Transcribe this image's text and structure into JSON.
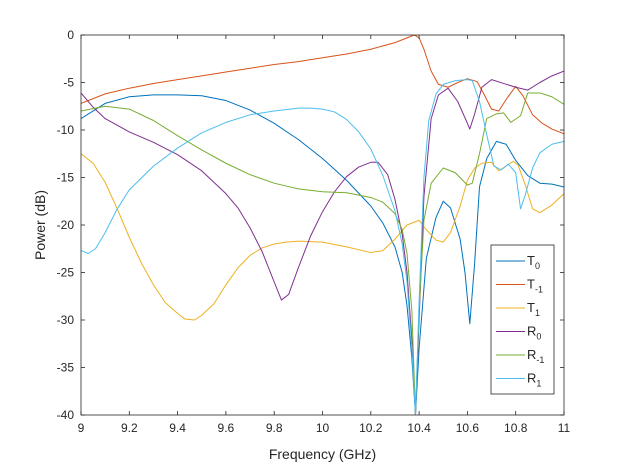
{
  "chart_data": {
    "type": "line",
    "xlabel": "Frequency (GHz)",
    "ylabel": "Power (dB)",
    "xlim": [
      9,
      11
    ],
    "ylim": [
      -40,
      0
    ],
    "xticks": [
      9,
      9.2,
      9.4,
      9.6,
      9.8,
      10,
      10.2,
      10.4,
      10.6,
      10.8,
      11
    ],
    "xtick_labels": [
      "9",
      "9.2",
      "9.4",
      "9.6",
      "9.8",
      "10",
      "10.2",
      "10.4",
      "10.6",
      "10.8",
      "11"
    ],
    "yticks": [
      0,
      -5,
      -10,
      -15,
      -20,
      -25,
      -30,
      -35,
      -40
    ],
    "ytick_labels": [
      "0",
      "-5",
      "-10",
      "-15",
      "-20",
      "-25",
      "-30",
      "-35",
      "-40"
    ],
    "grid": false,
    "legend_position": "bottom-right",
    "series": [
      {
        "name": "T",
        "sub": "0",
        "color": "#0072BD",
        "points": [
          [
            9,
            -8.8
          ],
          [
            9.1,
            -7.2
          ],
          [
            9.2,
            -6.5
          ],
          [
            9.3,
            -6.3
          ],
          [
            9.4,
            -6.3
          ],
          [
            9.5,
            -6.4
          ],
          [
            9.6,
            -6.9
          ],
          [
            9.7,
            -7.9
          ],
          [
            9.8,
            -9.3
          ],
          [
            9.9,
            -11
          ],
          [
            10,
            -13
          ],
          [
            10.1,
            -15.3
          ],
          [
            10.2,
            -18
          ],
          [
            10.25,
            -19.8
          ],
          [
            10.3,
            -22.3
          ],
          [
            10.33,
            -25
          ],
          [
            10.35,
            -28.5
          ],
          [
            10.37,
            -34
          ],
          [
            10.385,
            -40
          ],
          [
            10.4,
            -33
          ],
          [
            10.43,
            -23.5
          ],
          [
            10.47,
            -19.2
          ],
          [
            10.5,
            -17.5
          ],
          [
            10.53,
            -18.2
          ],
          [
            10.57,
            -21.5
          ],
          [
            10.59,
            -25
          ],
          [
            10.61,
            -30.4
          ],
          [
            10.63,
            -24
          ],
          [
            10.65,
            -16
          ],
          [
            10.68,
            -13
          ],
          [
            10.72,
            -11.2
          ],
          [
            10.76,
            -11.5
          ],
          [
            10.8,
            -13.2
          ],
          [
            10.85,
            -14.8
          ],
          [
            10.9,
            -15.6
          ],
          [
            10.95,
            -15.7
          ],
          [
            11,
            -16
          ]
        ]
      },
      {
        "name": "T",
        "sub": "-1",
        "color": "#D95319",
        "points": [
          [
            9,
            -7.2
          ],
          [
            9.1,
            -6.2
          ],
          [
            9.2,
            -5.6
          ],
          [
            9.3,
            -5.1
          ],
          [
            9.4,
            -4.7
          ],
          [
            9.5,
            -4.3
          ],
          [
            9.6,
            -3.9
          ],
          [
            9.7,
            -3.5
          ],
          [
            9.8,
            -3.1
          ],
          [
            9.9,
            -2.8
          ],
          [
            10,
            -2.4
          ],
          [
            10.1,
            -2
          ],
          [
            10.2,
            -1.5
          ],
          [
            10.3,
            -0.8
          ],
          [
            10.35,
            -0.3
          ],
          [
            10.38,
            0
          ],
          [
            10.4,
            -0.3
          ],
          [
            10.42,
            -1.5
          ],
          [
            10.45,
            -3.8
          ],
          [
            10.48,
            -5.2
          ],
          [
            10.52,
            -5.5
          ],
          [
            10.56,
            -5
          ],
          [
            10.6,
            -4.6
          ],
          [
            10.64,
            -4.9
          ],
          [
            10.67,
            -6.3
          ],
          [
            10.7,
            -7.8
          ],
          [
            10.73,
            -8
          ],
          [
            10.76,
            -6.8
          ],
          [
            10.8,
            -5.4
          ],
          [
            10.83,
            -6.4
          ],
          [
            10.87,
            -8.4
          ],
          [
            10.91,
            -9.3
          ],
          [
            10.95,
            -9.9
          ],
          [
            11,
            -10.4
          ]
        ]
      },
      {
        "name": "T",
        "sub": "1",
        "color": "#EDB120",
        "points": [
          [
            9,
            -12.5
          ],
          [
            9.05,
            -13.5
          ],
          [
            9.1,
            -15.5
          ],
          [
            9.15,
            -18.3
          ],
          [
            9.2,
            -21.3
          ],
          [
            9.25,
            -24
          ],
          [
            9.3,
            -26.3
          ],
          [
            9.35,
            -28.2
          ],
          [
            9.4,
            -29.3
          ],
          [
            9.43,
            -29.9
          ],
          [
            9.47,
            -30
          ],
          [
            9.5,
            -29.5
          ],
          [
            9.55,
            -28.3
          ],
          [
            9.6,
            -26.3
          ],
          [
            9.65,
            -24.5
          ],
          [
            9.7,
            -23.2
          ],
          [
            9.75,
            -22.4
          ],
          [
            9.8,
            -22
          ],
          [
            9.85,
            -21.8
          ],
          [
            9.9,
            -21.7
          ],
          [
            10,
            -21.8
          ],
          [
            10.1,
            -22.3
          ],
          [
            10.2,
            -22.9
          ],
          [
            10.25,
            -22.7
          ],
          [
            10.3,
            -21.5
          ],
          [
            10.35,
            -20
          ],
          [
            10.4,
            -19.5
          ],
          [
            10.43,
            -20.5
          ],
          [
            10.47,
            -21.6
          ],
          [
            10.5,
            -21.8
          ],
          [
            10.53,
            -20.8
          ],
          [
            10.57,
            -18
          ],
          [
            10.6,
            -15.3
          ],
          [
            10.63,
            -14
          ],
          [
            10.66,
            -13.5
          ],
          [
            10.7,
            -13.4
          ],
          [
            10.73,
            -14.3
          ],
          [
            10.76,
            -13.8
          ],
          [
            10.79,
            -13.3
          ],
          [
            10.81,
            -13.7
          ],
          [
            10.84,
            -15.8
          ],
          [
            10.87,
            -18.3
          ],
          [
            10.9,
            -18.7
          ],
          [
            10.95,
            -17.9
          ],
          [
            11,
            -16.7
          ]
        ]
      },
      {
        "name": "R",
        "sub": "0",
        "color": "#7E2F8E",
        "points": [
          [
            9,
            -6.1
          ],
          [
            9.05,
            -7.6
          ],
          [
            9.1,
            -8.8
          ],
          [
            9.2,
            -10.2
          ],
          [
            9.3,
            -11.3
          ],
          [
            9.4,
            -12.6
          ],
          [
            9.5,
            -14.3
          ],
          [
            9.6,
            -16.7
          ],
          [
            9.65,
            -18.2
          ],
          [
            9.7,
            -20.3
          ],
          [
            9.75,
            -22.8
          ],
          [
            9.8,
            -26
          ],
          [
            9.83,
            -27.9
          ],
          [
            9.86,
            -27.3
          ],
          [
            9.9,
            -24.5
          ],
          [
            9.95,
            -21.2
          ],
          [
            10,
            -18.6
          ],
          [
            10.05,
            -16.5
          ],
          [
            10.1,
            -14.9
          ],
          [
            10.15,
            -13.9
          ],
          [
            10.2,
            -13.4
          ],
          [
            10.23,
            -13.4
          ],
          [
            10.27,
            -14.7
          ],
          [
            10.3,
            -17.3
          ],
          [
            10.33,
            -21
          ],
          [
            10.35,
            -25
          ],
          [
            10.37,
            -32
          ],
          [
            10.385,
            -40
          ],
          [
            10.4,
            -30
          ],
          [
            10.42,
            -17
          ],
          [
            10.45,
            -8.8
          ],
          [
            10.48,
            -6.3
          ],
          [
            10.52,
            -5.6
          ],
          [
            10.56,
            -7
          ],
          [
            10.6,
            -9.3
          ],
          [
            10.61,
            -9.9
          ],
          [
            10.63,
            -8.3
          ],
          [
            10.66,
            -5.5
          ],
          [
            10.7,
            -4.7
          ],
          [
            10.75,
            -5.1
          ],
          [
            10.8,
            -5.5
          ],
          [
            10.85,
            -5.8
          ],
          [
            10.9,
            -5
          ],
          [
            10.95,
            -4.3
          ],
          [
            11,
            -3.8
          ]
        ]
      },
      {
        "name": "R",
        "sub": "-1",
        "color": "#77AC30",
        "points": [
          [
            9,
            -8
          ],
          [
            9.1,
            -7.5
          ],
          [
            9.2,
            -7.8
          ],
          [
            9.3,
            -9
          ],
          [
            9.4,
            -10.6
          ],
          [
            9.5,
            -12.1
          ],
          [
            9.6,
            -13.5
          ],
          [
            9.7,
            -14.7
          ],
          [
            9.8,
            -15.6
          ],
          [
            9.85,
            -15.9
          ],
          [
            9.9,
            -16.2
          ],
          [
            10,
            -16.5
          ],
          [
            10.1,
            -16.6
          ],
          [
            10.2,
            -17.1
          ],
          [
            10.25,
            -17.6
          ],
          [
            10.3,
            -18.8
          ],
          [
            10.33,
            -20.5
          ],
          [
            10.35,
            -23
          ],
          [
            10.37,
            -29
          ],
          [
            10.385,
            -40
          ],
          [
            10.4,
            -29
          ],
          [
            10.42,
            -19.5
          ],
          [
            10.45,
            -15.6
          ],
          [
            10.5,
            -14
          ],
          [
            10.55,
            -14.5
          ],
          [
            10.6,
            -15.8
          ],
          [
            10.62,
            -15.6
          ],
          [
            10.65,
            -12.5
          ],
          [
            10.68,
            -8.8
          ],
          [
            10.72,
            -8.3
          ],
          [
            10.75,
            -8.2
          ],
          [
            10.78,
            -9.2
          ],
          [
            10.82,
            -8.5
          ],
          [
            10.85,
            -6.1
          ],
          [
            10.9,
            -6.1
          ],
          [
            10.95,
            -6.5
          ],
          [
            11,
            -7.3
          ]
        ]
      },
      {
        "name": "R",
        "sub": "1",
        "color": "#4DBEEE",
        "points": [
          [
            9,
            -22.7
          ],
          [
            9.03,
            -23
          ],
          [
            9.06,
            -22.5
          ],
          [
            9.1,
            -20.8
          ],
          [
            9.15,
            -18.3
          ],
          [
            9.2,
            -16.3
          ],
          [
            9.3,
            -13.8
          ],
          [
            9.4,
            -11.9
          ],
          [
            9.5,
            -10.3
          ],
          [
            9.6,
            -9.2
          ],
          [
            9.7,
            -8.4
          ],
          [
            9.8,
            -8
          ],
          [
            9.9,
            -7.7
          ],
          [
            9.95,
            -7.7
          ],
          [
            10,
            -7.8
          ],
          [
            10.05,
            -8.1
          ],
          [
            10.1,
            -8.9
          ],
          [
            10.15,
            -10.2
          ],
          [
            10.2,
            -12
          ],
          [
            10.25,
            -14.8
          ],
          [
            10.3,
            -18.5
          ],
          [
            10.33,
            -22
          ],
          [
            10.35,
            -26
          ],
          [
            10.37,
            -33
          ],
          [
            10.385,
            -40
          ],
          [
            10.4,
            -28
          ],
          [
            10.42,
            -15
          ],
          [
            10.44,
            -9
          ],
          [
            10.47,
            -6.2
          ],
          [
            10.5,
            -5.2
          ],
          [
            10.55,
            -4.8
          ],
          [
            10.6,
            -4.7
          ],
          [
            10.62,
            -4.8
          ],
          [
            10.65,
            -7
          ],
          [
            10.68,
            -10.5
          ],
          [
            10.71,
            -13.8
          ],
          [
            10.74,
            -14.2
          ],
          [
            10.77,
            -13.6
          ],
          [
            10.8,
            -14.5
          ],
          [
            10.82,
            -18.3
          ],
          [
            10.84,
            -16.8
          ],
          [
            10.87,
            -14
          ],
          [
            10.9,
            -12.4
          ],
          [
            10.95,
            -11.5
          ],
          [
            11,
            -11.2
          ]
        ]
      }
    ]
  }
}
